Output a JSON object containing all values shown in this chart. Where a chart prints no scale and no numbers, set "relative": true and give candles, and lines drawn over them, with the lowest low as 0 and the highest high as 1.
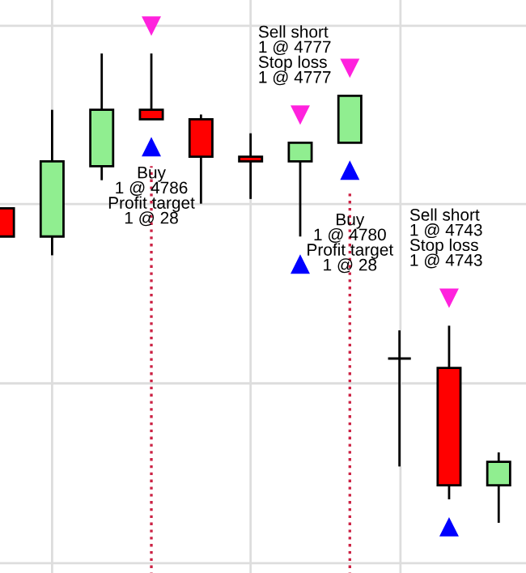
{
  "chart_data": {
    "type": "candlestick",
    "relative": true,
    "grid": true,
    "tick_labels": false,
    "categories": [
      null,
      null,
      null,
      null,
      null,
      null,
      null,
      null,
      null,
      null,
      null
    ],
    "ohlc": [
      [
        0.67,
        0.67,
        0.61,
        0.61
      ],
      [
        0.61,
        0.88,
        0.57,
        0.77
      ],
      [
        0.76,
        1.0,
        0.73,
        0.88
      ],
      [
        0.88,
        1.0,
        0.86,
        0.86
      ],
      [
        0.86,
        0.87,
        0.68,
        0.78
      ],
      [
        0.78,
        0.83,
        0.69,
        0.77
      ],
      [
        0.77,
        0.81,
        0.61,
        0.81
      ],
      [
        0.81,
        0.91,
        0.81,
        0.91
      ],
      [
        0.35,
        0.41,
        0.12,
        0.35
      ],
      [
        0.33,
        0.42,
        0.05,
        0.08
      ],
      [
        0.08,
        0.15,
        0.0,
        0.13
      ]
    ],
    "colors": [
      "#ff0000",
      "#90ee90",
      "#90ee90",
      "#ff0000",
      "#ff0000",
      "#ff0000",
      "#90ee90",
      "#90ee90",
      "#000000",
      "#ff0000",
      "#90ee90"
    ],
    "annotations": [
      "Buy\n1 @ 4786\nProfit target\n1 @ 28",
      "Sell short\n1 @ 4777\nStop loss\n1 @ 4777",
      "Buy\n1 @ 4780\nProfit target\n1 @ 28",
      "Sell short\n1 @ 4743\nStop loss\n1 @ 4743"
    ]
  }
}
